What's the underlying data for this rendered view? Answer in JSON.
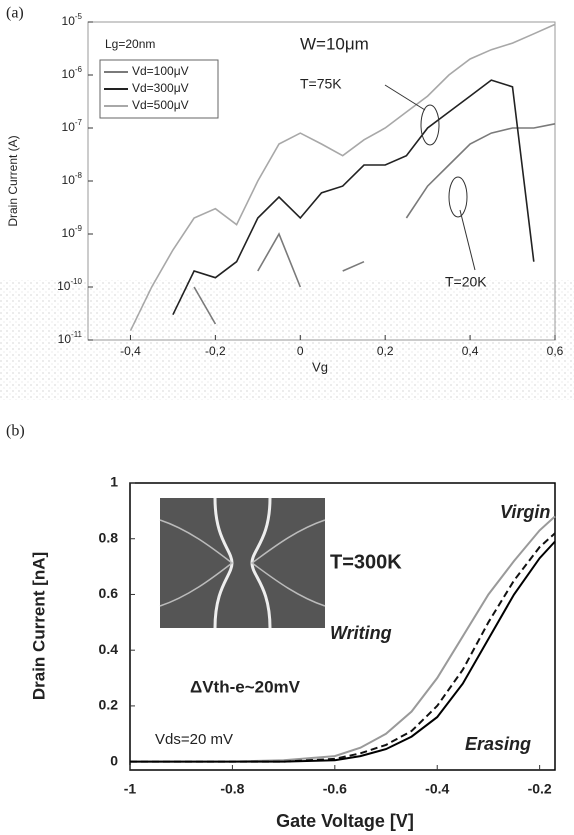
{
  "chart_data": [
    {
      "type": "line",
      "panel": "(a)",
      "xlabel": "Vg",
      "ylabel": "Drain Current (A)",
      "log_y": true,
      "legend": "upper left",
      "annotations": [
        "Lg=20nm",
        "W=10μm",
        "T=75K",
        "T=20K"
      ],
      "xlim": [
        -0.5,
        0.6
      ],
      "ylim": [
        1e-11,
        1e-05
      ],
      "xticks": [
        {
          "value": -0.4,
          "label": "-0,4"
        },
        {
          "value": -0.2,
          "label": "-0,2"
        },
        0,
        {
          "value": 0.2,
          "label": "0,2"
        },
        {
          "value": 0.4,
          "label": "0,4"
        },
        {
          "value": 0.6,
          "label": "0,6"
        }
      ],
      "yticks": [
        {
          "value": 1e-11,
          "label": "10-11"
        },
        {
          "value": 1e-10,
          "label": "10-10"
        },
        {
          "value": 1e-09,
          "label": "10-9"
        },
        {
          "value": 1e-08,
          "label": "10-8"
        },
        {
          "value": 1e-07,
          "label": "10-7"
        },
        {
          "value": 1e-06,
          "label": "10-6"
        },
        {
          "value": 1e-05,
          "label": "10-5"
        }
      ],
      "x": [
        -0.5,
        -0.45,
        -0.4,
        -0.35,
        -0.3,
        -0.25,
        -0.2,
        -0.15,
        -0.1,
        -0.05,
        0,
        0.05,
        0.1,
        0.15,
        0.2,
        0.25,
        0.3,
        0.35,
        0.4,
        0.45,
        0.5,
        0.55,
        0.6
      ],
      "series": [
        {
          "name": "Vd=100μV",
          "color": "#7a7a7a",
          "values": [
            null,
            null,
            null,
            null,
            null,
            1e-10,
            2e-11,
            null,
            2e-10,
            1e-09,
            1e-10,
            null,
            2e-10,
            3e-10,
            null,
            2e-09,
            8e-09,
            2e-08,
            5e-08,
            8e-08,
            1e-07,
            1e-07,
            1.2e-07
          ]
        },
        {
          "name": "Vd=300μV",
          "color": "#222222",
          "values": [
            null,
            null,
            null,
            null,
            3e-11,
            2e-10,
            1.5e-10,
            3e-10,
            2e-09,
            5e-09,
            2e-09,
            6e-09,
            8e-09,
            2e-08,
            2e-08,
            3e-08,
            1e-07,
            2e-07,
            4e-07,
            8e-07,
            6e-07,
            3e-10,
            null
          ]
        },
        {
          "name": "Vd=500μV",
          "color": "#a8a8a8",
          "values": [
            null,
            null,
            1.5e-11,
            1e-10,
            5e-10,
            2e-09,
            3e-09,
            1.5e-09,
            1e-08,
            5e-08,
            8e-08,
            5e-08,
            3e-08,
            6e-08,
            1e-07,
            2e-07,
            4e-07,
            1e-06,
            2e-06,
            3e-06,
            4e-06,
            6e-06,
            9e-06
          ]
        }
      ]
    },
    {
      "type": "line",
      "panel": "(b)",
      "xlabel": "Gate Voltage [V]",
      "ylabel": "Drain Current  [nA]",
      "annotations": [
        "T=300K",
        "ΔVth-e~20mV",
        "Vds=20 mV"
      ],
      "xlim": [
        -1,
        -0.17
      ],
      "ylim": [
        -0.03,
        1
      ],
      "xticks": [
        -1,
        -0.8,
        -0.6,
        -0.4,
        -0.2
      ],
      "yticks": [
        0,
        0.2,
        0.4,
        0.6,
        0.8,
        1
      ],
      "x": [
        -1,
        -0.9,
        -0.8,
        -0.7,
        -0.6,
        -0.55,
        -0.5,
        -0.45,
        -0.4,
        -0.35,
        -0.3,
        -0.25,
        -0.2,
        -0.17
      ],
      "series": [
        {
          "name": "Writing",
          "color": "#9a9a9a",
          "values": [
            0,
            0,
            0,
            0.005,
            0.02,
            0.05,
            0.1,
            0.18,
            0.3,
            0.45,
            0.6,
            0.72,
            0.83,
            0.88
          ]
        },
        {
          "name": "Virgin",
          "color": "#111111",
          "dashed": true,
          "values": [
            0,
            0,
            0,
            0,
            0.01,
            0.03,
            0.06,
            0.11,
            0.2,
            0.33,
            0.5,
            0.65,
            0.77,
            0.82
          ]
        },
        {
          "name": "Erasing",
          "color": "#000000",
          "values": [
            0,
            0,
            0,
            0,
            0.005,
            0.02,
            0.045,
            0.09,
            0.16,
            0.28,
            0.44,
            0.6,
            0.73,
            0.79
          ]
        }
      ]
    }
  ]
}
